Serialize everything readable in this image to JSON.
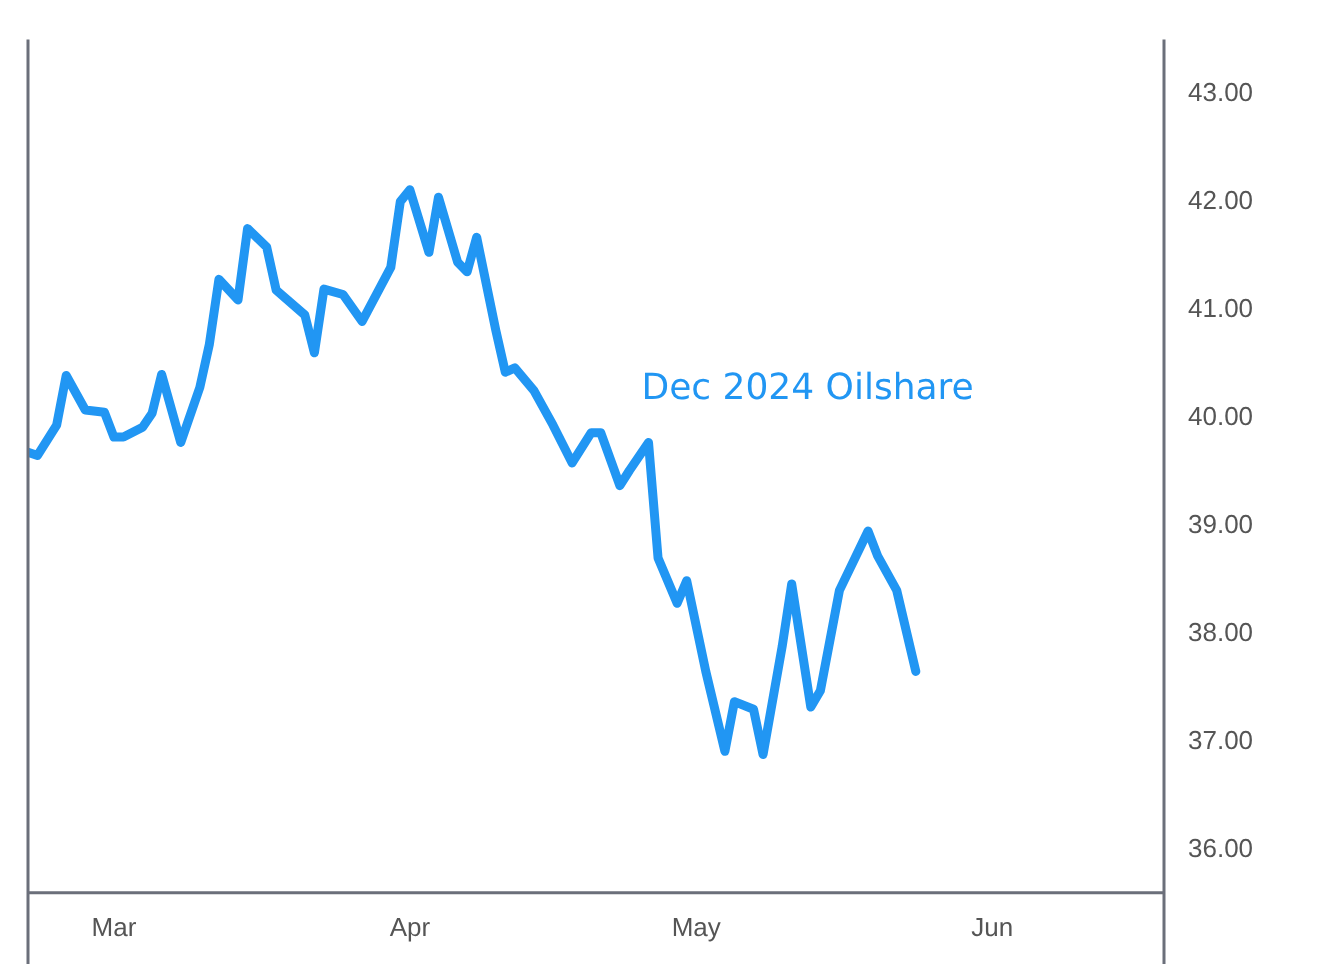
{
  "chart_data": {
    "type": "line",
    "x": [
      "2024-02-21",
      "2024-02-22",
      "2024-02-24",
      "2024-02-25",
      "2024-02-27",
      "2024-02-29",
      "2024-03-01",
      "2024-03-02",
      "2024-03-04",
      "2024-03-05",
      "2024-03-06",
      "2024-03-08",
      "2024-03-10",
      "2024-03-11",
      "2024-03-12",
      "2024-03-14",
      "2024-03-15",
      "2024-03-17",
      "2024-03-18",
      "2024-03-21",
      "2024-03-22",
      "2024-03-23",
      "2024-03-25",
      "2024-03-27",
      "2024-03-30",
      "2024-03-31",
      "2024-04-01",
      "2024-04-03",
      "2024-04-04",
      "2024-04-06",
      "2024-04-07",
      "2024-04-08",
      "2024-04-10",
      "2024-04-11",
      "2024-04-12",
      "2024-04-14",
      "2024-04-16",
      "2024-04-18",
      "2024-04-20",
      "2024-04-21",
      "2024-04-23",
      "2024-04-24",
      "2024-04-26",
      "2024-04-27",
      "2024-04-29",
      "2024-04-30",
      "2024-05-02",
      "2024-05-04",
      "2024-05-05",
      "2024-05-07",
      "2024-05-08",
      "2024-05-10",
      "2024-05-11",
      "2024-05-13",
      "2024-05-14",
      "2024-05-16",
      "2024-05-19",
      "2024-05-20",
      "2024-05-22",
      "2024-05-24"
    ],
    "series": [
      {
        "name": "Dec 2024 Oilshare",
        "color": "#2196f3",
        "values": [
          39.68,
          39.65,
          39.93,
          40.39,
          40.07,
          40.05,
          39.82,
          39.82,
          39.91,
          40.04,
          40.4,
          39.77,
          40.28,
          40.68,
          41.28,
          41.09,
          41.75,
          41.58,
          41.18,
          40.95,
          40.6,
          41.19,
          41.14,
          40.89,
          41.39,
          42.0,
          42.11,
          41.53,
          42.04,
          41.44,
          41.35,
          41.67,
          40.81,
          40.42,
          40.46,
          40.25,
          39.93,
          39.58,
          39.86,
          39.86,
          39.37,
          39.51,
          39.77,
          38.7,
          38.28,
          38.49,
          37.65,
          36.91,
          37.37,
          37.3,
          36.88,
          37.88,
          38.46,
          37.32,
          37.47,
          38.4,
          38.95,
          38.72,
          38.4,
          37.65
        ]
      }
    ],
    "xlim": [
      "2024-02-21",
      "2024-06-19"
    ],
    "xticks": [
      {
        "value": "2024-03-01",
        "label": "Mar"
      },
      {
        "value": "2024-04-01",
        "label": "Apr"
      },
      {
        "value": "2024-05-01",
        "label": "May"
      },
      {
        "value": "2024-06-01",
        "label": "Jun"
      }
    ],
    "ylim": [
      35.6,
      43.5
    ],
    "yticks": [
      {
        "value": 36,
        "label": "36.00"
      },
      {
        "value": 37,
        "label": "37.00"
      },
      {
        "value": 38,
        "label": "38.00"
      },
      {
        "value": 39,
        "label": "39.00"
      },
      {
        "value": 40,
        "label": "40.00"
      },
      {
        "value": 41,
        "label": "41.00"
      },
      {
        "value": 42,
        "label": "42.00"
      },
      {
        "value": 43,
        "label": "43.00"
      }
    ],
    "grid": false,
    "legend": false,
    "marker": "none",
    "line_style": "solid"
  }
}
